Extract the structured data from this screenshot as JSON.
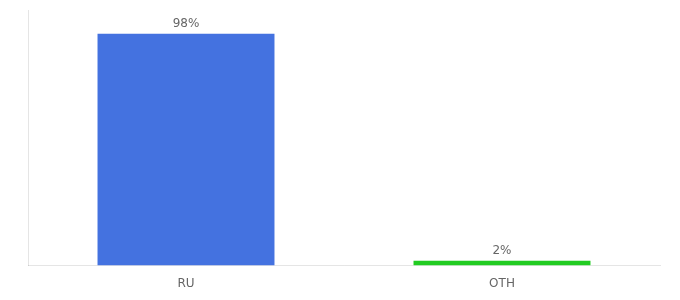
{
  "chart_data": {
    "type": "bar",
    "categories": [
      "RU",
      "OTH"
    ],
    "values": [
      98,
      2
    ],
    "value_labels": [
      "98%",
      "2%"
    ],
    "data_labels": true,
    "colors": [
      "#4472e0",
      "#22cc22"
    ],
    "ylim": [
      0,
      108
    ],
    "tick_labels": "x",
    "grid": false
  }
}
